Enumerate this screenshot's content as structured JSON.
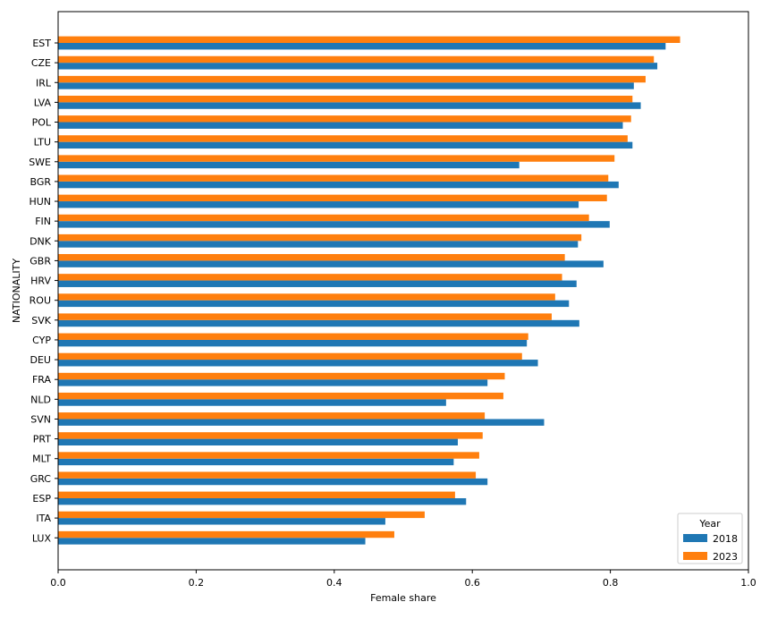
{
  "chart_data": {
    "type": "bar",
    "orientation": "horizontal",
    "title": "",
    "xlabel": "Female share",
    "ylabel": "NATIONALITY",
    "xlim": [
      0.0,
      1.0
    ],
    "xticks": [
      "0.0",
      "0.2",
      "0.4",
      "0.6",
      "0.8",
      "1.0"
    ],
    "grid": false,
    "legend": {
      "title": "Year",
      "placement": "lower-right"
    },
    "categories": [
      "EST",
      "CZE",
      "IRL",
      "LVA",
      "POL",
      "LTU",
      "SWE",
      "BGR",
      "HUN",
      "FIN",
      "DNK",
      "GBR",
      "HRV",
      "ROU",
      "SVK",
      "CYP",
      "DEU",
      "FRA",
      "NLD",
      "SVN",
      "PRT",
      "MLT",
      "GRC",
      "ESP",
      "ITA",
      "LUX"
    ],
    "series": [
      {
        "name": "2018",
        "color": "#1f77b4",
        "values": [
          0.88,
          0.868,
          0.834,
          0.844,
          0.818,
          0.832,
          0.668,
          0.812,
          0.754,
          0.799,
          0.753,
          0.79,
          0.751,
          0.74,
          0.755,
          0.679,
          0.695,
          0.622,
          0.562,
          0.704,
          0.579,
          0.573,
          0.622,
          0.591,
          0.474,
          0.445
        ]
      },
      {
        "name": "2023",
        "color": "#ff7f0e",
        "values": [
          0.901,
          0.863,
          0.851,
          0.832,
          0.83,
          0.825,
          0.806,
          0.797,
          0.795,
          0.769,
          0.758,
          0.734,
          0.73,
          0.72,
          0.715,
          0.681,
          0.672,
          0.647,
          0.645,
          0.618,
          0.615,
          0.61,
          0.605,
          0.575,
          0.531,
          0.487
        ]
      }
    ]
  }
}
